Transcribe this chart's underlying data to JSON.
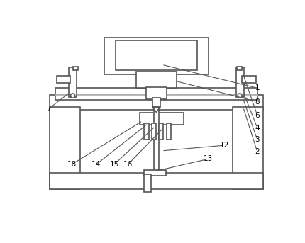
{
  "bg_color": "#ffffff",
  "line_color": "#555555",
  "lw": 1.2,
  "fig_w": 4.3,
  "fig_h": 3.43,
  "dpi": 100
}
